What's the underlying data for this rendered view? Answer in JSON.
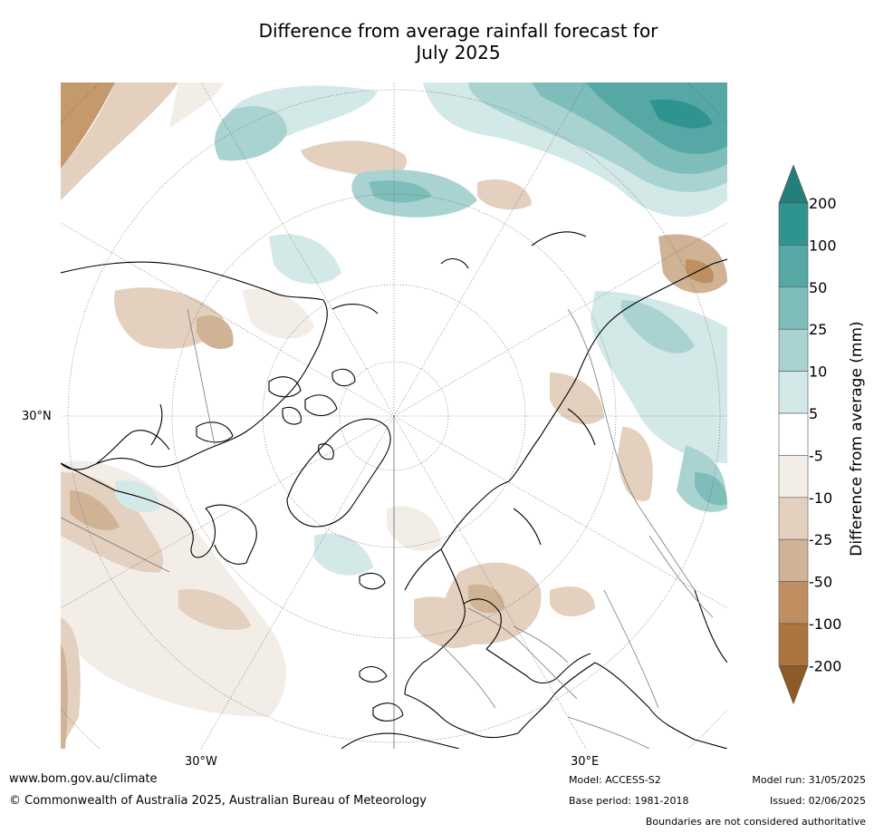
{
  "title_line1": "Difference from average rainfall forecast for",
  "title_line2": "July 2025",
  "map": {
    "lat_label": "30°N",
    "lon_label_left": "30°W",
    "lon_label_right": "30°E"
  },
  "legend": {
    "title": "Difference from average (mm)",
    "ticks": [
      "200",
      "100",
      "50",
      "25",
      "10",
      "5",
      "-5",
      "-10",
      "-25",
      "-50",
      "-100",
      "-200"
    ],
    "colors": [
      "#2f938f",
      "#56a8a5",
      "#7fbdba",
      "#a9d3d1",
      "#d3e9e8",
      "#ffffff",
      "#f3ede7",
      "#e3d0bf",
      "#d0b394",
      "#bf8f62",
      "#ad753e"
    ],
    "arrow_top_color": "#267e7a",
    "arrow_bottom_color": "#8e5a26"
  },
  "footer": {
    "url": "www.bom.gov.au/climate",
    "copyright": "© Commonwealth of Australia 2025, Australian Bureau of Meteorology",
    "model": "Model: ACCESS-S2",
    "base_period": "Base period: 1981-2018",
    "model_run": "Model run: 31/05/2025",
    "issued": "Issued: 02/06/2025",
    "disclaimer": "Boundaries are not considered authoritative"
  }
}
